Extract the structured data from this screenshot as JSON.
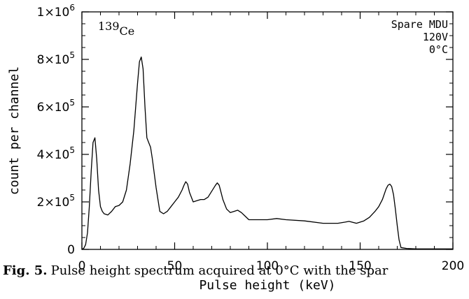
{
  "chart_data": {
    "type": "line",
    "title": "",
    "xlabel": "Pulse height (keV)",
    "ylabel": "count per channel",
    "xlim": [
      0,
      200
    ],
    "ylim": [
      0,
      1000000
    ],
    "xticks": [
      {
        "value": 0,
        "label": "0"
      },
      {
        "value": 50,
        "label": "50"
      },
      {
        "value": 100,
        "label": "100"
      },
      {
        "value": 150,
        "label": "150"
      },
      {
        "value": 200,
        "label": "200"
      }
    ],
    "yticks": [
      {
        "value": 0,
        "base": "0",
        "exp": ""
      },
      {
        "value": 200000,
        "base": "2×10",
        "exp": "5"
      },
      {
        "value": 400000,
        "base": "4×10",
        "exp": "5"
      },
      {
        "value": 600000,
        "base": "6×10",
        "exp": "5"
      },
      {
        "value": 800000,
        "base": "8×10",
        "exp": "5"
      },
      {
        "value": 1000000,
        "base": "1×10",
        "exp": "6"
      }
    ],
    "grid": false,
    "series": [
      {
        "x": [
          0,
          1,
          2,
          3,
          4,
          5,
          6,
          7,
          8,
          9,
          10,
          11,
          12,
          14,
          16,
          18,
          20,
          22,
          24,
          26,
          28,
          30,
          31,
          32,
          33,
          34,
          35,
          36,
          37,
          38,
          40,
          42,
          44,
          46,
          48,
          50,
          52,
          54,
          55,
          56,
          57,
          58,
          60,
          62,
          64,
          66,
          68,
          70,
          72,
          73,
          74,
          75,
          76,
          78,
          80,
          82,
          84,
          86,
          88,
          90,
          95,
          100,
          105,
          110,
          120,
          130,
          138,
          142,
          144,
          148,
          152,
          155,
          158,
          160,
          162,
          164,
          165,
          166,
          167,
          168,
          169,
          170,
          171,
          172,
          175,
          180,
          190,
          200
        ],
        "y": [
          0,
          5000,
          20000,
          70000,
          180000,
          330000,
          450000,
          470000,
          380000,
          250000,
          180000,
          160000,
          150000,
          145000,
          160000,
          180000,
          185000,
          200000,
          250000,
          360000,
          500000,
          700000,
          790000,
          810000,
          760000,
          600000,
          470000,
          450000,
          430000,
          380000,
          260000,
          160000,
          150000,
          160000,
          180000,
          200000,
          220000,
          250000,
          270000,
          285000,
          275000,
          240000,
          200000,
          205000,
          210000,
          210000,
          220000,
          245000,
          270000,
          280000,
          270000,
          240000,
          210000,
          170000,
          155000,
          160000,
          165000,
          155000,
          140000,
          125000,
          125000,
          125000,
          130000,
          125000,
          120000,
          110000,
          110000,
          115000,
          118000,
          110000,
          120000,
          135000,
          160000,
          180000,
          210000,
          255000,
          270000,
          275000,
          265000,
          230000,
          170000,
          100000,
          40000,
          8000,
          4000,
          2000,
          2000,
          2000
        ]
      }
    ],
    "annotations": {
      "isotope_mass": "139",
      "isotope_symbol": "Ce",
      "lines": [
        "Spare MDU",
        "120V",
        "0°C"
      ]
    }
  },
  "caption": {
    "label": "Fig. 5.",
    "text": "Pulse height spectrum acquired at 0°C with the spar"
  }
}
